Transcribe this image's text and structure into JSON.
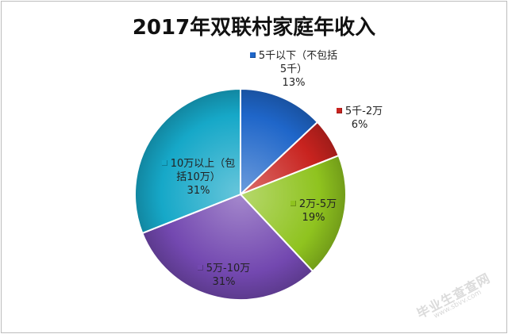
{
  "chart_data": {
    "type": "pie",
    "title": "2017年双联村家庭年收入",
    "slices": [
      {
        "name": "5千以下（不包括\n5千）",
        "value": 13,
        "label": "13%",
        "color": "#1f66c9"
      },
      {
        "name": "5千-2万",
        "value": 6,
        "label": "6%",
        "color": "#c8231f"
      },
      {
        "name": "2万-5万",
        "value": 19,
        "label": "19%",
        "color": "#8fc31f"
      },
      {
        "name": "5万-10万",
        "value": 31,
        "label": "31%",
        "color": "#7348b0"
      },
      {
        "name": "10万以上（包\n括10万）",
        "value": 31,
        "label": "31%",
        "color": "#16a8c8"
      }
    ]
  },
  "watermark": {
    "text": "毕业生查查网",
    "url": "www.sbvv.com"
  }
}
